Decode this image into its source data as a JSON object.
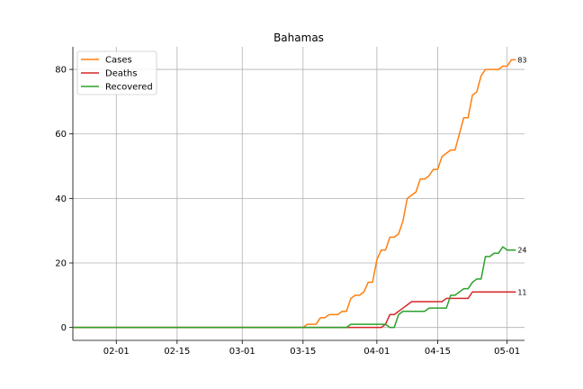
{
  "chart_data": {
    "type": "line",
    "title": "Bahamas",
    "xlabel": "",
    "ylabel": "",
    "x_range": [
      "2020-01-22",
      "2020-05-05"
    ],
    "ylim": [
      -4,
      87
    ],
    "x_ticks": [
      "2020-02-01",
      "2020-02-15",
      "2020-03-01",
      "2020-03-15",
      "2020-04-01",
      "2020-04-15",
      "2020-05-01"
    ],
    "x_tick_labels": [
      "02-01",
      "02-15",
      "03-01",
      "03-15",
      "04-01",
      "04-15",
      "05-01"
    ],
    "y_ticks": [
      0,
      20,
      40,
      60,
      80
    ],
    "grid": true,
    "legend_position": "top-left",
    "series": [
      {
        "name": "Cases",
        "color": "#ff7f0e",
        "end_label": "83",
        "points": [
          [
            "2020-01-22",
            0
          ],
          [
            "2020-03-15",
            0
          ],
          [
            "2020-03-16",
            1
          ],
          [
            "2020-03-18",
            1
          ],
          [
            "2020-03-19",
            3
          ],
          [
            "2020-03-20",
            3
          ],
          [
            "2020-03-21",
            4
          ],
          [
            "2020-03-23",
            4
          ],
          [
            "2020-03-24",
            5
          ],
          [
            "2020-03-25",
            5
          ],
          [
            "2020-03-26",
            9
          ],
          [
            "2020-03-27",
            10
          ],
          [
            "2020-03-28",
            10
          ],
          [
            "2020-03-29",
            11
          ],
          [
            "2020-03-30",
            14
          ],
          [
            "2020-03-31",
            14
          ],
          [
            "2020-04-01",
            21
          ],
          [
            "2020-04-02",
            24
          ],
          [
            "2020-04-03",
            24
          ],
          [
            "2020-04-04",
            28
          ],
          [
            "2020-04-05",
            28
          ],
          [
            "2020-04-06",
            29
          ],
          [
            "2020-04-07",
            33
          ],
          [
            "2020-04-08",
            40
          ],
          [
            "2020-04-09",
            41
          ],
          [
            "2020-04-10",
            42
          ],
          [
            "2020-04-11",
            46
          ],
          [
            "2020-04-12",
            46
          ],
          [
            "2020-04-13",
            47
          ],
          [
            "2020-04-14",
            49
          ],
          [
            "2020-04-15",
            49
          ],
          [
            "2020-04-16",
            53
          ],
          [
            "2020-04-17",
            54
          ],
          [
            "2020-04-18",
            55
          ],
          [
            "2020-04-19",
            55
          ],
          [
            "2020-04-20",
            60
          ],
          [
            "2020-04-21",
            65
          ],
          [
            "2020-04-22",
            65
          ],
          [
            "2020-04-23",
            72
          ],
          [
            "2020-04-24",
            73
          ],
          [
            "2020-04-25",
            78
          ],
          [
            "2020-04-26",
            80
          ],
          [
            "2020-04-27",
            80
          ],
          [
            "2020-04-28",
            80
          ],
          [
            "2020-04-29",
            80
          ],
          [
            "2020-04-30",
            81
          ],
          [
            "2020-05-01",
            81
          ],
          [
            "2020-05-02",
            83
          ],
          [
            "2020-05-03",
            83
          ]
        ]
      },
      {
        "name": "Deaths",
        "color": "#d62728",
        "end_label": "11",
        "points": [
          [
            "2020-01-22",
            0
          ],
          [
            "2020-04-02",
            0
          ],
          [
            "2020-04-03",
            1
          ],
          [
            "2020-04-04",
            4
          ],
          [
            "2020-04-05",
            4
          ],
          [
            "2020-04-06",
            5
          ],
          [
            "2020-04-07",
            6
          ],
          [
            "2020-04-08",
            7
          ],
          [
            "2020-04-09",
            8
          ],
          [
            "2020-04-10",
            8
          ],
          [
            "2020-04-16",
            8
          ],
          [
            "2020-04-17",
            9
          ],
          [
            "2020-04-21",
            9
          ],
          [
            "2020-04-22",
            9
          ],
          [
            "2020-04-23",
            11
          ],
          [
            "2020-05-03",
            11
          ]
        ]
      },
      {
        "name": "Recovered",
        "color": "#2ca02c",
        "end_label": "24",
        "points": [
          [
            "2020-01-22",
            0
          ],
          [
            "2020-03-25",
            0
          ],
          [
            "2020-03-26",
            1
          ],
          [
            "2020-04-02",
            1
          ],
          [
            "2020-04-03",
            1
          ],
          [
            "2020-04-04",
            0
          ],
          [
            "2020-04-05",
            0
          ],
          [
            "2020-04-06",
            4
          ],
          [
            "2020-04-07",
            5
          ],
          [
            "2020-04-12",
            5
          ],
          [
            "2020-04-13",
            6
          ],
          [
            "2020-04-17",
            6
          ],
          [
            "2020-04-18",
            10
          ],
          [
            "2020-04-19",
            10
          ],
          [
            "2020-04-20",
            11
          ],
          [
            "2020-04-21",
            12
          ],
          [
            "2020-04-22",
            12
          ],
          [
            "2020-04-23",
            14
          ],
          [
            "2020-04-24",
            15
          ],
          [
            "2020-04-25",
            15
          ],
          [
            "2020-04-26",
            22
          ],
          [
            "2020-04-27",
            22
          ],
          [
            "2020-04-28",
            23
          ],
          [
            "2020-04-29",
            23
          ],
          [
            "2020-04-30",
            25
          ],
          [
            "2020-05-01",
            24
          ],
          [
            "2020-05-03",
            24
          ]
        ]
      }
    ]
  }
}
